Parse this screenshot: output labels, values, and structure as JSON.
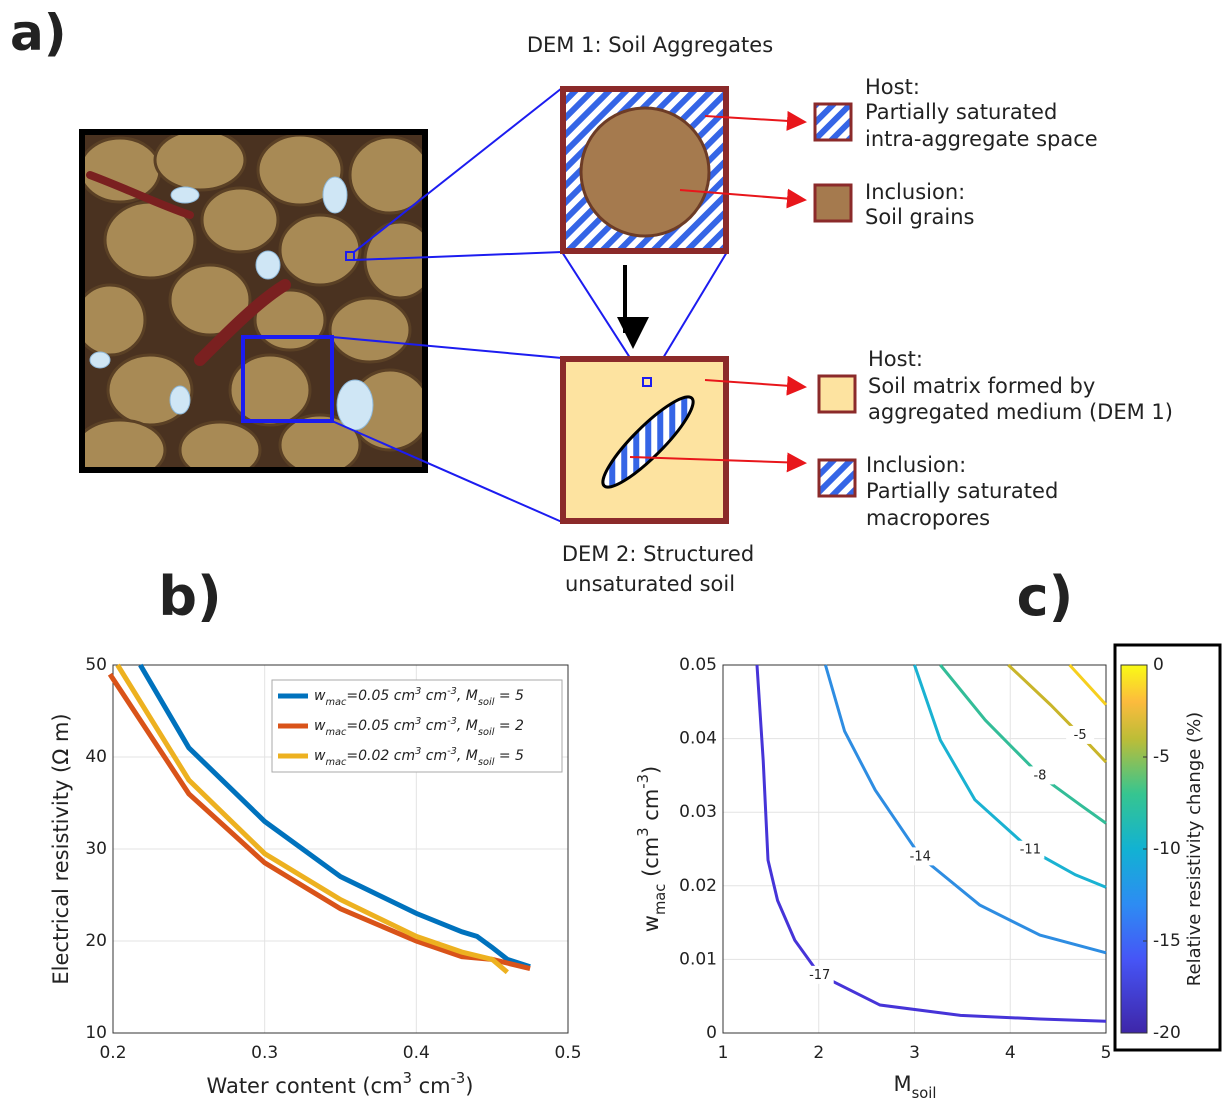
{
  "panel_a": {
    "label": "a)",
    "dem1_title": "DEM 1: Soil Aggregates",
    "dem2_title": [
      "DEM 2: Structured",
      "unsaturated soil"
    ],
    "dem1_legend": [
      {
        "heading": "Host:",
        "lines": [
          "Partially saturated",
          "intra-aggregate space"
        ]
      },
      {
        "heading": "Inclusion:",
        "lines": [
          "Soil grains"
        ]
      }
    ],
    "dem2_legend": [
      {
        "heading": "Host:",
        "lines": [
          "Soil matrix formed by",
          "aggregated medium (DEM 1)"
        ]
      },
      {
        "heading": "Inclusion:",
        "lines": [
          "Partially saturated",
          "macropores"
        ]
      }
    ]
  },
  "chart_data": [
    {
      "type": "line",
      "panel_label": "b)",
      "xlabel": "Water content (cm^{3} cm^{-3})",
      "ylabel": "Electrical resistivity (Ω m)",
      "xlim": [
        0.2,
        0.5
      ],
      "ylim": [
        10,
        50
      ],
      "xticks": [
        0.2,
        0.3,
        0.4,
        0.5
      ],
      "yticks": [
        10,
        20,
        30,
        40,
        50
      ],
      "grid": true,
      "legend": "upper right",
      "series": [
        {
          "name": "w_{mac}=0.05 cm^{3} cm^{-3}, M_{soil} = 5",
          "color": "#0072bd",
          "x": [
            0.218,
            0.25,
            0.3,
            0.35,
            0.4,
            0.43,
            0.44,
            0.45,
            0.46,
            0.475
          ],
          "values": [
            50,
            41,
            33,
            27,
            23,
            21,
            20.5,
            19.3,
            18,
            17.2
          ]
        },
        {
          "name": "w_{mac}=0.05 cm^{3} cm^{-3}, M_{soil} = 2",
          "color": "#d95319",
          "x": [
            0.198,
            0.25,
            0.3,
            0.35,
            0.4,
            0.43,
            0.45,
            0.475
          ],
          "values": [
            49,
            36,
            28.5,
            23.5,
            20,
            18.3,
            18,
            17
          ]
        },
        {
          "name": "w_{mac}=0.02 cm^{3} cm^{-3}, M_{soil} = 5",
          "color": "#edb120",
          "x": [
            0.203,
            0.25,
            0.3,
            0.35,
            0.4,
            0.43,
            0.45,
            0.46
          ],
          "values": [
            50,
            37.5,
            29.5,
            24.5,
            20.5,
            18.8,
            18,
            16.6
          ]
        }
      ]
    },
    {
      "type": "contour",
      "panel_label": "c)",
      "xlabel": "M_{soil}",
      "ylabel": "w_{mac} (cm^{3} cm^{-3})",
      "xlim": [
        1,
        5
      ],
      "ylim": [
        0,
        0.05
      ],
      "xticks": [
        1,
        2,
        3,
        4,
        5
      ],
      "yticks": [
        0,
        0.01,
        0.02,
        0.03,
        0.04,
        0.05
      ],
      "grid": true,
      "colorbar": {
        "label": "Relative resistivity change (%)",
        "lim": [
          -20,
          0
        ],
        "ticks": [
          -20,
          -15,
          -10,
          -5,
          0
        ]
      },
      "contours": [
        {
          "level": -17,
          "color": "#4634d8",
          "x": [
            1.355,
            1.42,
            1.47,
            1.57,
            1.75,
            2.01,
            2.64,
            3.48,
            4.31,
            5
          ],
          "y": [
            0.05,
            0.037,
            0.0235,
            0.018,
            0.0126,
            0.0079,
            0.0038,
            0.0024,
            0.0019,
            0.0016
          ]
        },
        {
          "level": -14,
          "color": "#2e8de2",
          "x": [
            2.07,
            2.27,
            2.59,
            3.06,
            3.68,
            4.31,
            5
          ],
          "y": [
            0.05,
            0.041,
            0.033,
            0.024,
            0.0174,
            0.0133,
            0.0109
          ]
        },
        {
          "level": -11,
          "color": "#1ab2d2",
          "x": [
            3.0,
            3.27,
            3.63,
            4.21,
            4.68,
            5
          ],
          "y": [
            0.05,
            0.0398,
            0.0317,
            0.0249,
            0.0215,
            0.0198
          ]
        },
        {
          "level": -8,
          "color": "#33bd98",
          "x": [
            3.27,
            3.74,
            4.31,
            4.73,
            5
          ],
          "y": [
            0.05,
            0.0425,
            0.035,
            0.031,
            0.0285
          ]
        },
        {
          "level": -5,
          "color": "#c9b52a",
          "x": [
            3.98,
            4.42,
            4.73,
            5
          ],
          "y": [
            0.05,
            0.0446,
            0.0405,
            0.0368
          ]
        },
        {
          "level": -2,
          "color": "#f6cf1e",
          "x": [
            4.62,
            5
          ],
          "y": [
            0.05,
            0.0446
          ]
        }
      ]
    }
  ]
}
